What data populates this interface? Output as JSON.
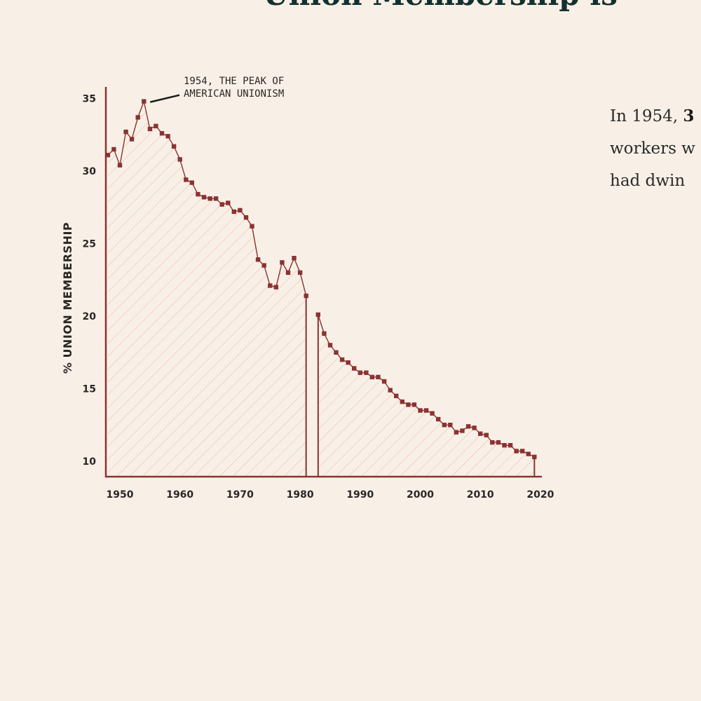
{
  "article": {
    "headline": "Union Membership is ",
    "body_lines": [
      {
        "plain": "In 1954, ",
        "bold": "3"
      },
      {
        "plain": "workers w",
        "bold": ""
      },
      {
        "plain": "had dwin",
        "bold": ""
      }
    ]
  },
  "colors": {
    "background": "#f8f0e6",
    "line": "#8b3232",
    "hatch": "#e8b4ae",
    "text": "#2a2626"
  },
  "chart_data": {
    "type": "area",
    "title": "",
    "xlabel": "",
    "ylabel": "% UNION MEMBERSHIP",
    "xlim": [
      1948,
      2021
    ],
    "ylim": [
      9,
      36
    ],
    "x_ticks": [
      1950,
      1960,
      1970,
      1980,
      1990,
      2000,
      2010,
      2020
    ],
    "y_ticks": [
      10,
      15,
      20,
      25,
      30,
      35
    ],
    "grid": false,
    "legend": "none",
    "annotation": {
      "text_lines": [
        "1954, THE PEAK OF",
        "AMERICAN UNIONISM"
      ],
      "year": 1954,
      "value": 34.8
    },
    "series": [
      {
        "values_segment_1": [
          [
            1948,
            31.1
          ],
          [
            1949,
            31.5
          ],
          [
            1950,
            30.4
          ],
          [
            1951,
            32.7
          ],
          [
            1952,
            32.2
          ],
          [
            1953,
            33.7
          ],
          [
            1954,
            34.8
          ],
          [
            1955,
            32.9
          ],
          [
            1956,
            33.1
          ],
          [
            1957,
            32.6
          ],
          [
            1958,
            32.4
          ],
          [
            1959,
            31.7
          ],
          [
            1960,
            30.8
          ],
          [
            1961,
            29.4
          ],
          [
            1962,
            29.2
          ],
          [
            1963,
            28.4
          ],
          [
            1964,
            28.2
          ],
          [
            1965,
            28.1
          ],
          [
            1966,
            28.1
          ],
          [
            1967,
            27.7
          ],
          [
            1968,
            27.8
          ],
          [
            1969,
            27.2
          ],
          [
            1970,
            27.3
          ],
          [
            1971,
            26.8
          ],
          [
            1972,
            26.2
          ],
          [
            1973,
            23.9
          ],
          [
            1974,
            23.5
          ],
          [
            1975,
            22.1
          ],
          [
            1976,
            22.0
          ],
          [
            1977,
            23.7
          ],
          [
            1978,
            23.0
          ],
          [
            1979,
            24.0
          ],
          [
            1980,
            23.0
          ],
          [
            1981,
            21.4
          ]
        ],
        "values_segment_2": [
          [
            1983,
            20.1
          ],
          [
            1984,
            18.8
          ],
          [
            1985,
            18.0
          ],
          [
            1986,
            17.5
          ],
          [
            1987,
            17.0
          ],
          [
            1988,
            16.8
          ],
          [
            1989,
            16.4
          ],
          [
            1990,
            16.1
          ],
          [
            1991,
            16.1
          ],
          [
            1992,
            15.8
          ],
          [
            1993,
            15.8
          ],
          [
            1994,
            15.5
          ],
          [
            1995,
            14.9
          ],
          [
            1996,
            14.5
          ],
          [
            1997,
            14.1
          ],
          [
            1998,
            13.9
          ],
          [
            1999,
            13.9
          ],
          [
            2000,
            13.5
          ],
          [
            2001,
            13.5
          ],
          [
            2002,
            13.3
          ],
          [
            2003,
            12.9
          ],
          [
            2004,
            12.5
          ],
          [
            2005,
            12.5
          ],
          [
            2006,
            12.0
          ],
          [
            2007,
            12.1
          ],
          [
            2008,
            12.4
          ],
          [
            2009,
            12.3
          ],
          [
            2010,
            11.9
          ],
          [
            2011,
            11.8
          ],
          [
            2012,
            11.3
          ],
          [
            2013,
            11.3
          ],
          [
            2014,
            11.1
          ],
          [
            2015,
            11.1
          ],
          [
            2016,
            10.7
          ],
          [
            2017,
            10.7
          ],
          [
            2018,
            10.5
          ],
          [
            2019,
            10.3
          ]
        ]
      }
    ]
  }
}
